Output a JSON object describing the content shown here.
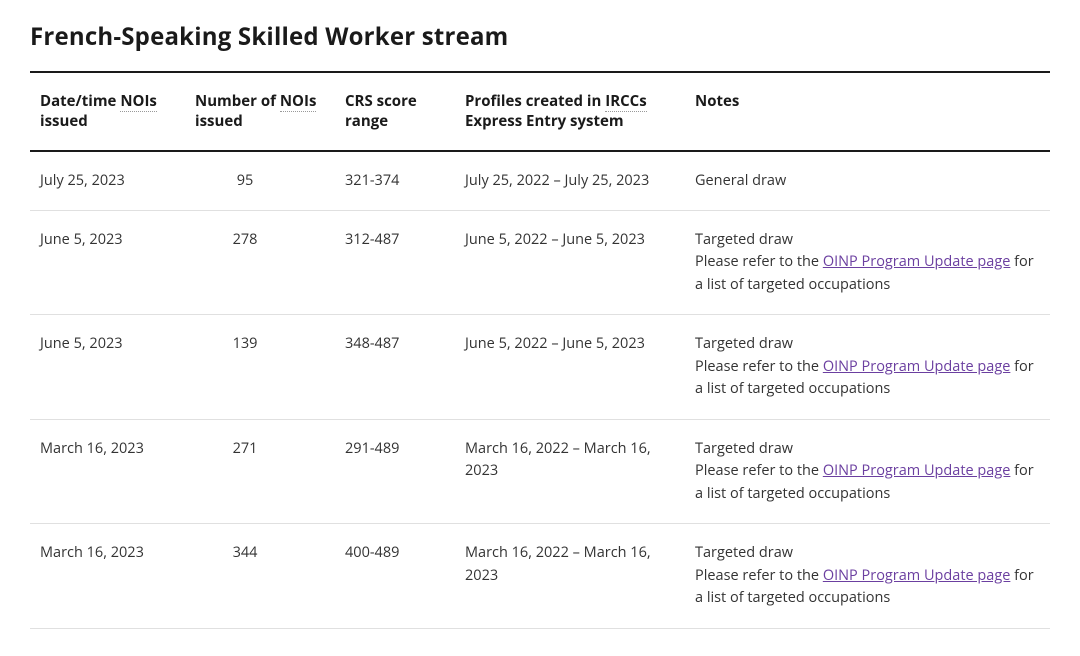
{
  "title": "French-Speaking Skilled Worker stream",
  "abbr": {
    "nois": "NOIs",
    "irccs": "IRCCs"
  },
  "columns": {
    "date": {
      "pre": "Date/time ",
      "abbr_key": "nois",
      "post": " issued"
    },
    "num": {
      "pre": "Number of ",
      "abbr_key": "nois",
      "post": " issued"
    },
    "crs": {
      "pre": "CRS score range"
    },
    "profiles": {
      "pre": "Profiles created in ",
      "abbr_key": "irccs",
      "post": " Express Entry system"
    },
    "notes": {
      "pre": "Notes"
    }
  },
  "targeted_note": {
    "line1": "Targeted draw",
    "line2_pre": "Please refer to the ",
    "link_text": "OINP Program Update page",
    "line2_post": " for a list of targeted occupations"
  },
  "rows": [
    {
      "date": "July 25, 2023",
      "num": "95",
      "crs": "321-374",
      "profiles": "July 25, 2022 – July 25, 2023",
      "note_type": "general",
      "note_text": "General draw"
    },
    {
      "date": "June 5, 2023",
      "num": "278",
      "crs": "312-487",
      "profiles": "June 5, 2022 – June 5, 2023",
      "note_type": "targeted"
    },
    {
      "date": "June 5, 2023",
      "num": "139",
      "crs": "348-487",
      "profiles": "June 5, 2022 – June 5, 2023",
      "note_type": "targeted"
    },
    {
      "date": "March 16, 2023",
      "num": "271",
      "crs": "291-489",
      "profiles": "March 16, 2022 – March 16, 2023",
      "note_type": "targeted"
    },
    {
      "date": "March 16, 2023",
      "num": "344",
      "crs": "400-489",
      "profiles": "March 16, 2022 – March 16, 2023",
      "note_type": "targeted"
    }
  ]
}
